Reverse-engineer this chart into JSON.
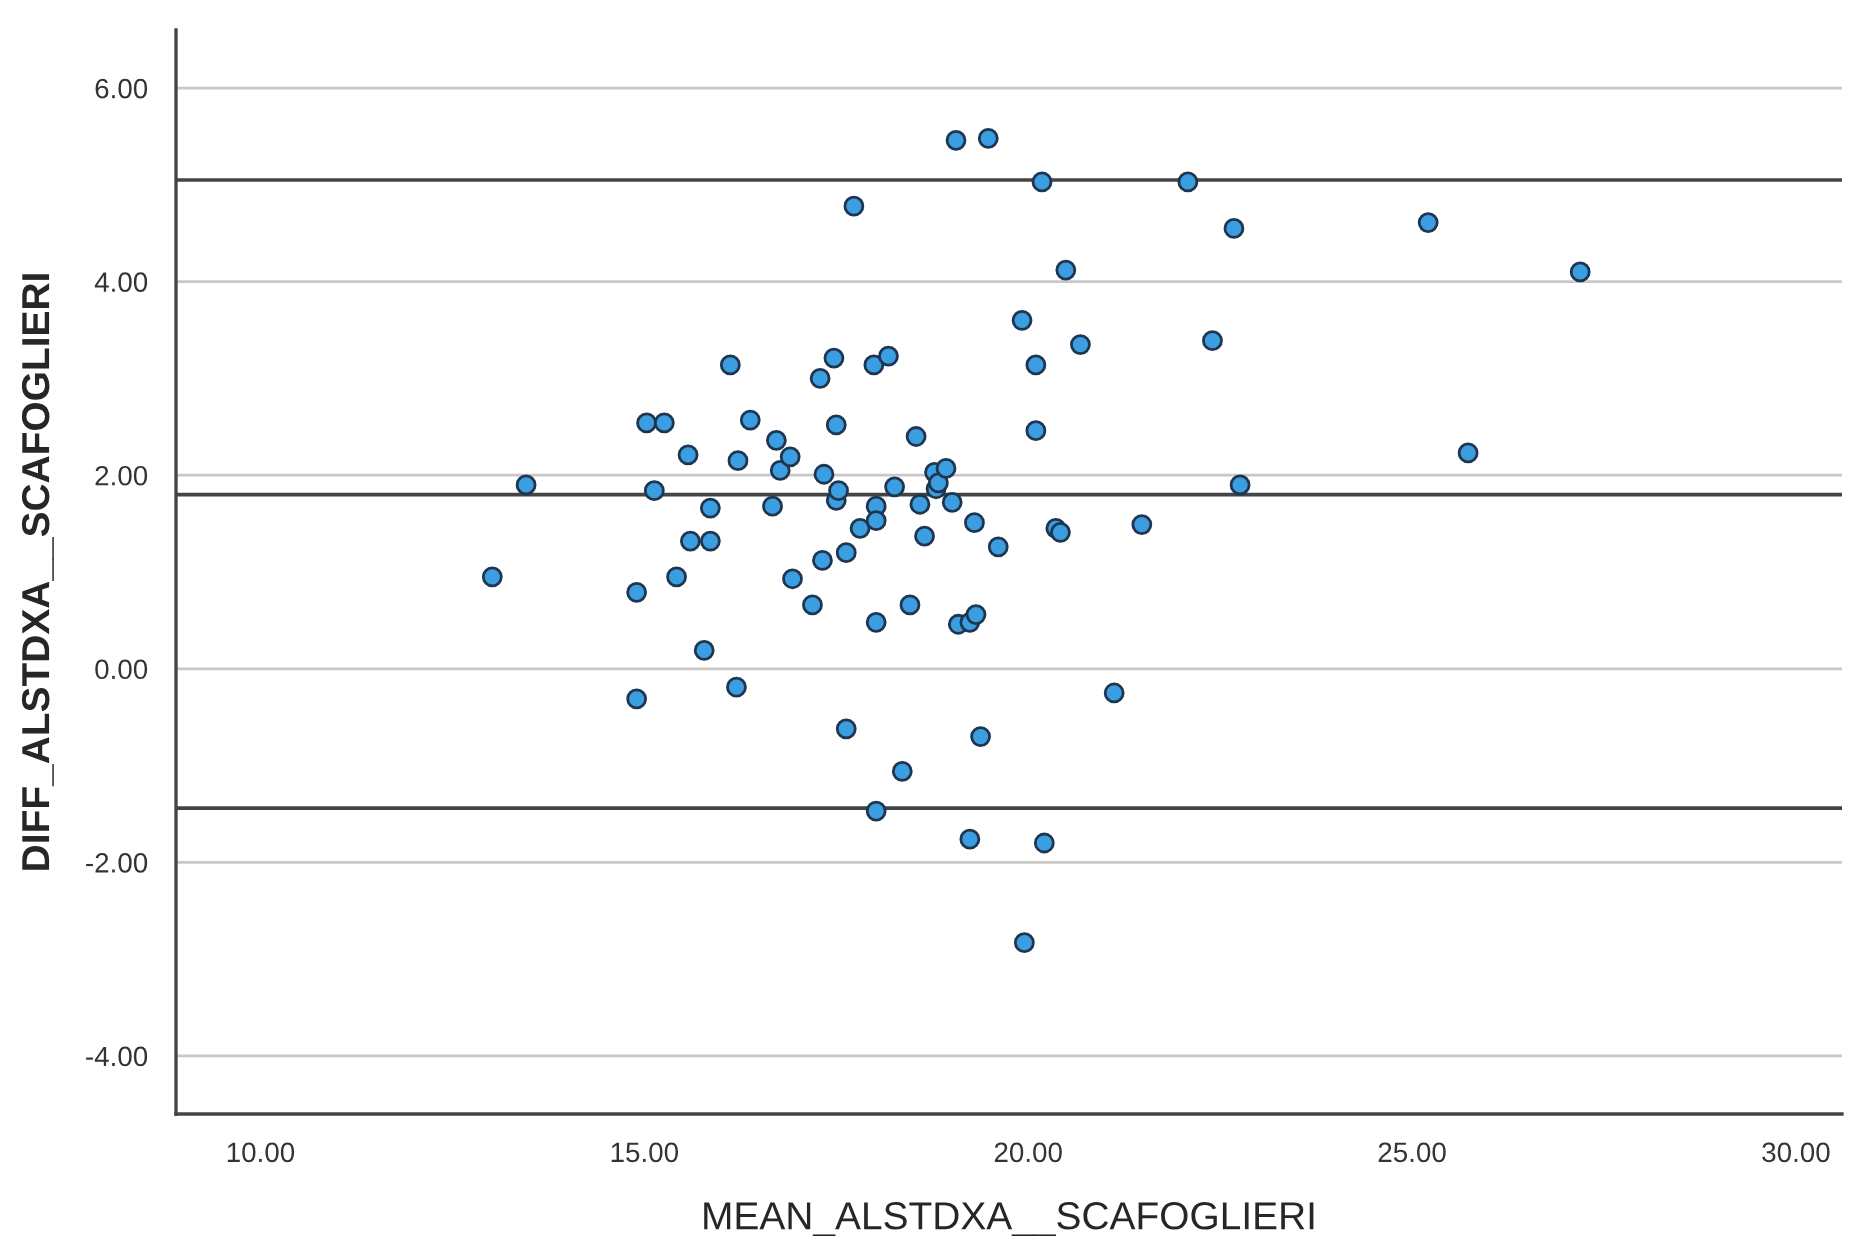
{
  "chart_data": {
    "type": "scatter",
    "xlabel": "MEAN_ALSTDXA__SCAFOGLIERI",
    "ylabel": "DIFF_ALSTDXA__SCAFOGLIERI",
    "x": [
      13.02,
      13.46,
      14.9,
      14.9,
      15.03,
      15.26,
      15.13,
      15.42,
      15.57,
      15.6,
      15.78,
      15.86,
      15.86,
      16.12,
      16.2,
      16.22,
      16.38,
      16.67,
      16.72,
      16.77,
      16.9,
      16.93,
      17.19,
      17.29,
      17.34,
      17.32,
      17.47,
      17.5,
      17.5,
      17.53,
      17.63,
      17.63,
      17.73,
      17.81,
      17.99,
      18.02,
      18.02,
      18.02,
      18.02,
      18.18,
      18.26,
      18.36,
      18.46,
      18.54,
      18.59,
      18.65,
      18.78,
      18.8,
      18.83,
      18.93,
      19.01,
      19.09,
      19.06,
      19.24,
      19.24,
      19.3,
      19.32,
      19.38,
      19.48,
      19.61,
      19.92,
      19.95,
      20.1,
      20.1,
      20.18,
      20.21,
      20.36,
      20.42,
      20.49,
      20.68,
      21.48,
      21.12,
      22.08,
      22.4,
      22.68,
      22.76,
      25.21,
      25.73,
      27.19
    ],
    "series": [
      {
        "color": "#3a9ee0",
        "values": [
          0.95,
          1.9,
          -0.31,
          0.79,
          2.54,
          2.54,
          1.84,
          0.95,
          2.21,
          1.32,
          0.19,
          1.66,
          1.32,
          3.14,
          -0.19,
          2.15,
          2.57,
          1.68,
          2.36,
          2.05,
          2.19,
          0.93,
          0.66,
          3.0,
          2.01,
          1.12,
          3.21,
          2.52,
          1.74,
          1.84,
          1.2,
          -0.62,
          4.78,
          1.45,
          3.14,
          1.68,
          1.53,
          0.48,
          -1.47,
          3.23,
          1.88,
          -1.06,
          0.66,
          2.4,
          1.7,
          1.37,
          2.03,
          1.86,
          1.92,
          2.07,
          1.72,
          0.46,
          5.46,
          0.48,
          -1.76,
          1.51,
          0.56,
          -0.7,
          5.48,
          1.26,
          3.6,
          -2.83,
          3.14,
          2.46,
          5.03,
          -1.8,
          1.45,
          1.41,
          4.12,
          3.35,
          1.49,
          -0.25,
          5.03,
          3.39,
          4.55,
          1.9,
          4.61,
          2.23,
          4.1
        ]
      }
    ],
    "marker": "circle",
    "xlim": [
      8.9,
      30.6
    ],
    "ylim": [
      -4.6,
      6.6
    ],
    "xticks": [
      {
        "value": 10,
        "label": "10.00"
      },
      {
        "value": 15,
        "label": "15.00"
      },
      {
        "value": 20,
        "label": "20.00"
      },
      {
        "value": 25,
        "label": "25.00"
      },
      {
        "value": 30,
        "label": "30.00"
      }
    ],
    "yticks": [
      {
        "value": -4,
        "label": "-4.00"
      },
      {
        "value": -2,
        "label": "-2.00"
      },
      {
        "value": 0,
        "label": "0.00"
      },
      {
        "value": 2,
        "label": "2.00"
      },
      {
        "value": 4,
        "label": "4.00"
      },
      {
        "value": 6,
        "label": "6.00"
      }
    ],
    "grid": "y",
    "ref_lines": [
      {
        "axis": "y",
        "value": 5.05,
        "color": "#444444"
      },
      {
        "axis": "y",
        "value": 1.8,
        "color": "#444444"
      },
      {
        "axis": "y",
        "value": -1.44,
        "color": "#444444"
      }
    ]
  }
}
